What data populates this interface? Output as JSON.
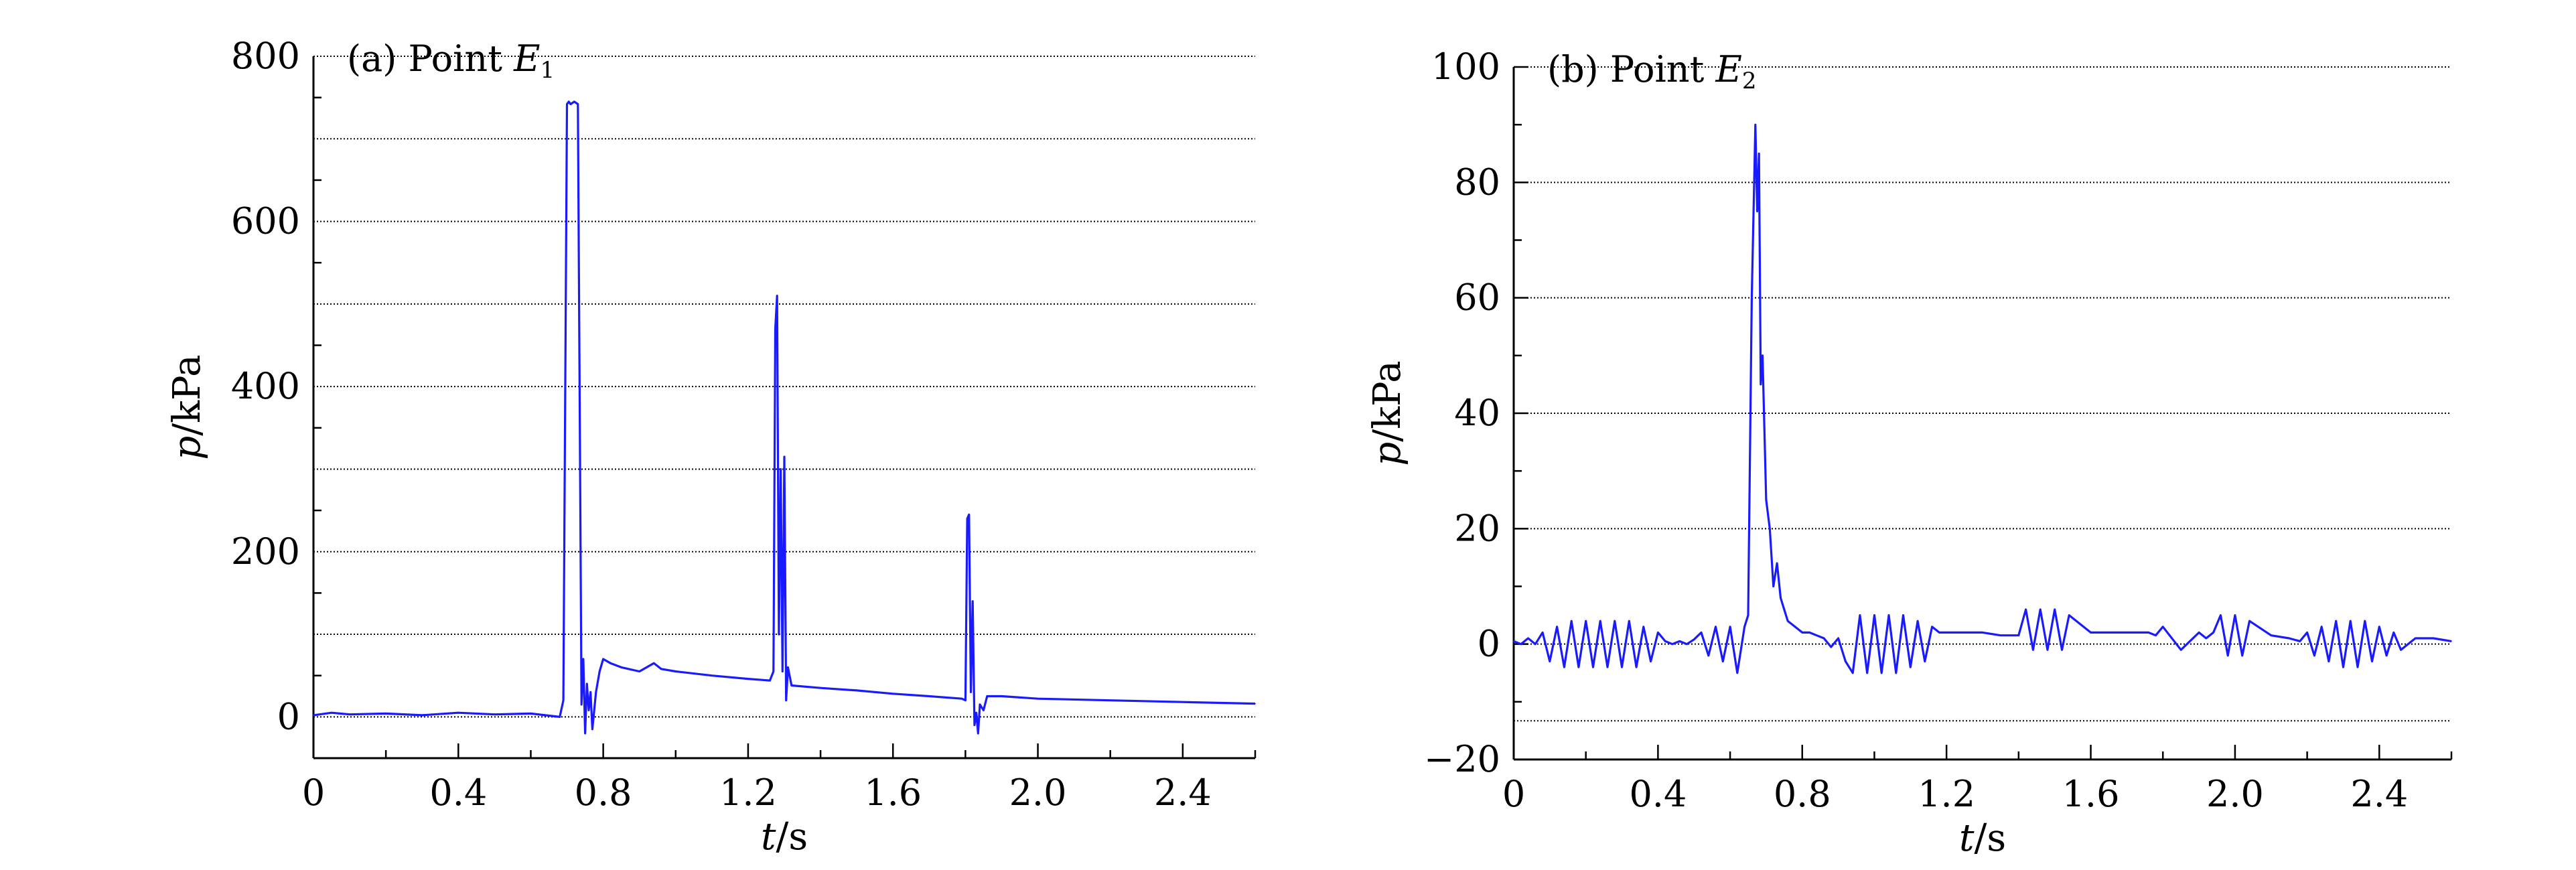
{
  "chart_data": [
    {
      "type": "line",
      "title_prefix": "(a) Point ",
      "title_symbol": "E",
      "title_subscript": "1",
      "xlabel_var": "t",
      "xlabel_unit": "/s",
      "ylabel_var": "p",
      "ylabel_unit": "/kPa",
      "xlim": [
        0,
        2.6
      ],
      "ylim": [
        -50,
        800
      ],
      "x_ticks": [
        0,
        0.4,
        0.8,
        1.2,
        1.6,
        2.0,
        2.4
      ],
      "x_tick_labels": [
        "0",
        "0.4",
        "0.8",
        "1.2",
        "1.6",
        "2.0",
        "2.4"
      ],
      "y_ticks": [
        0,
        200,
        400,
        600,
        800
      ],
      "y_tick_labels": [
        "0",
        "200",
        "400",
        "600",
        "800"
      ],
      "grid_y": [
        0,
        100,
        200,
        300,
        400,
        500,
        600,
        700,
        800
      ],
      "grid": "horizontal dotted",
      "series": [
        {
          "color": "#1a1aff",
          "x": [
            0.0,
            0.05,
            0.1,
            0.2,
            0.3,
            0.4,
            0.5,
            0.6,
            0.64,
            0.66,
            0.68,
            0.69,
            0.7,
            0.705,
            0.71,
            0.72,
            0.73,
            0.735,
            0.74,
            0.745,
            0.75,
            0.755,
            0.76,
            0.765,
            0.77,
            0.78,
            0.79,
            0.8,
            0.82,
            0.85,
            0.9,
            0.94,
            0.96,
            1.0,
            1.1,
            1.2,
            1.26,
            1.27,
            1.275,
            1.28,
            1.285,
            1.29,
            1.295,
            1.3,
            1.305,
            1.31,
            1.32,
            1.4,
            1.5,
            1.6,
            1.7,
            1.79,
            1.8,
            1.805,
            1.81,
            1.815,
            1.82,
            1.825,
            1.83,
            1.835,
            1.84,
            1.85,
            1.86,
            1.9,
            2.0,
            2.2,
            2.4,
            2.6
          ],
          "y": [
            2,
            5,
            3,
            4,
            2,
            5,
            3,
            4,
            2,
            1,
            0,
            20,
            742,
            745,
            742,
            745,
            742,
            380,
            15,
            70,
            -20,
            40,
            8,
            30,
            -15,
            30,
            55,
            70,
            65,
            60,
            55,
            65,
            58,
            55,
            50,
            46,
            44,
            55,
            470,
            510,
            100,
            300,
            55,
            315,
            20,
            60,
            38,
            35,
            32,
            28,
            25,
            22,
            20,
            240,
            245,
            30,
            140,
            -10,
            5,
            -20,
            15,
            8,
            25,
            25,
            22,
            20,
            18,
            16
          ]
        }
      ]
    },
    {
      "type": "line",
      "title_prefix": "(b) Point ",
      "title_symbol": "E",
      "title_subscript": "2",
      "xlabel_var": "t",
      "xlabel_unit": "/s",
      "ylabel_var": "p",
      "ylabel_unit": "/kPa",
      "xlim": [
        0,
        2.6
      ],
      "ylim": [
        -20,
        100
      ],
      "x_ticks": [
        0,
        0.4,
        0.8,
        1.2,
        1.6,
        2.0,
        2.4
      ],
      "x_tick_labels": [
        "0",
        "0.4",
        "0.8",
        "1.2",
        "1.6",
        "2.0",
        "2.4"
      ],
      "y_ticks": [
        -20,
        0,
        20,
        40,
        60,
        80,
        100
      ],
      "y_tick_labels": [
        "−20",
        "0",
        "20",
        "40",
        "60",
        "80",
        "100"
      ],
      "grid_y": [
        -13.3,
        0,
        20,
        40,
        60,
        80,
        100
      ],
      "grid": "horizontal dotted",
      "series": [
        {
          "color": "#1a1aff",
          "x": [
            0.0,
            0.02,
            0.04,
            0.06,
            0.08,
            0.1,
            0.12,
            0.14,
            0.16,
            0.18,
            0.2,
            0.22,
            0.24,
            0.26,
            0.28,
            0.3,
            0.32,
            0.34,
            0.36,
            0.38,
            0.4,
            0.42,
            0.44,
            0.46,
            0.48,
            0.5,
            0.52,
            0.54,
            0.56,
            0.58,
            0.6,
            0.62,
            0.64,
            0.65,
            0.66,
            0.67,
            0.675,
            0.68,
            0.685,
            0.69,
            0.7,
            0.71,
            0.72,
            0.73,
            0.74,
            0.75,
            0.76,
            0.78,
            0.8,
            0.82,
            0.84,
            0.86,
            0.88,
            0.9,
            0.92,
            0.94,
            0.96,
            0.98,
            1.0,
            1.02,
            1.04,
            1.06,
            1.08,
            1.1,
            1.12,
            1.14,
            1.16,
            1.18,
            1.2,
            1.25,
            1.3,
            1.35,
            1.4,
            1.42,
            1.44,
            1.46,
            1.48,
            1.5,
            1.52,
            1.54,
            1.6,
            1.7,
            1.76,
            1.78,
            1.8,
            1.85,
            1.9,
            1.92,
            1.94,
            1.96,
            1.98,
            2.0,
            2.02,
            2.04,
            2.1,
            2.15,
            2.18,
            2.2,
            2.22,
            2.24,
            2.26,
            2.28,
            2.3,
            2.32,
            2.34,
            2.36,
            2.38,
            2.4,
            2.42,
            2.44,
            2.46,
            2.5,
            2.55,
            2.6
          ],
          "y": [
            0.5,
            0,
            1,
            0,
            2,
            -3,
            3,
            -4,
            4,
            -4,
            4,
            -4,
            4,
            -4,
            4,
            -4,
            4,
            -4,
            3,
            -3,
            2,
            0.5,
            0,
            0.5,
            0,
            0.8,
            2,
            -2,
            3,
            -3,
            3,
            -5,
            3,
            5,
            60,
            90,
            75,
            85,
            45,
            50,
            25,
            20,
            10,
            14,
            8,
            6,
            4,
            3,
            2,
            2,
            1.5,
            1,
            -0.5,
            1,
            -3,
            -5,
            5,
            -5,
            5,
            -5,
            5,
            -5,
            5,
            -4,
            4,
            -3,
            3,
            2,
            2,
            2,
            2,
            1.5,
            1.5,
            6,
            -1,
            6,
            -1,
            6,
            -1,
            5,
            2,
            2,
            2,
            1.5,
            3,
            -1,
            2,
            1,
            2,
            5,
            -2,
            5,
            -2,
            4,
            1.5,
            1,
            0.5,
            2,
            -2,
            3,
            -3,
            4,
            -4,
            4,
            -4,
            4,
            -3,
            3,
            -2,
            2,
            -1,
            1,
            1,
            0.5
          ]
        }
      ]
    }
  ]
}
